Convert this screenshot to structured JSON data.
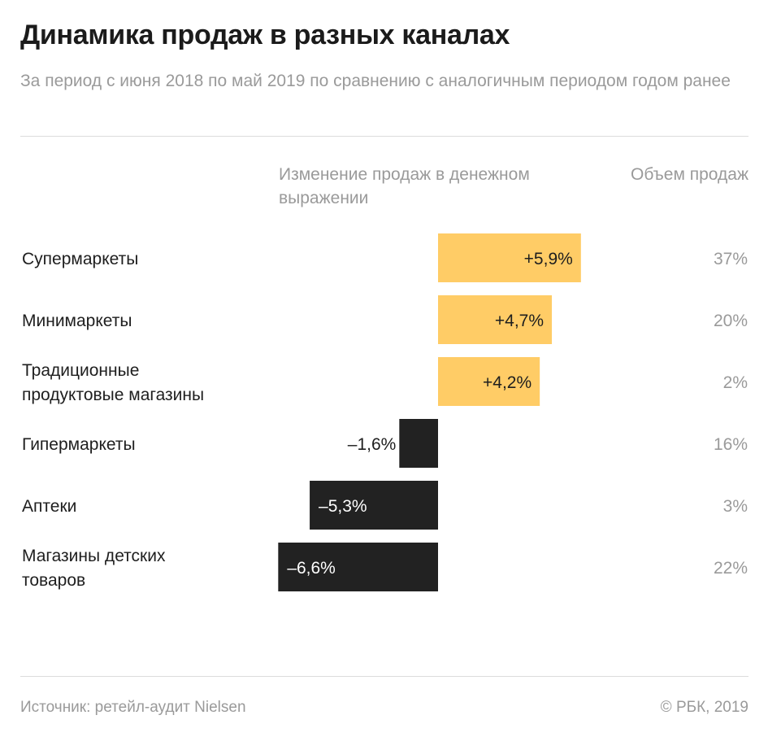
{
  "header": {
    "title": "Динамика продаж в разных каналах",
    "subtitle": "За период с июня 2018 по май 2019 по сравнению с аналогичным периодом годом ранее"
  },
  "columns": {
    "change": "Изменение продаж в денежном выражении",
    "volume": "Объем продаж"
  },
  "chart_data": {
    "type": "bar",
    "orientation": "horizontal",
    "title": "Динамика продаж в разных каналах",
    "subtitle": "За период с июня 2018 по май 2019 по сравнению с аналогичным периодом годом ранее",
    "xlabel": "Изменение продаж в денежном выражении",
    "categories": [
      "Супермаркеты",
      "Минимаркеты",
      "Традиционные продуктовые магазины",
      "Гипермаркеты",
      "Аптеки",
      "Магазины детских товаров"
    ],
    "values": [
      5.9,
      4.7,
      4.2,
      -1.6,
      -5.3,
      -6.6
    ],
    "value_labels": [
      "+5,9%",
      "+4,7%",
      "+4,2%",
      "–1,6%",
      "–5,3%",
      "–6,6%"
    ],
    "volume_share": [
      "37%",
      "20%",
      "2%",
      "16%",
      "3%",
      "22%"
    ],
    "xlim": [
      -6.6,
      5.9
    ],
    "grid": false,
    "colors": {
      "positive": "#ffcc66",
      "negative": "#222222",
      "label_on_positive": "#1e1e1e",
      "label_on_negative": "#ffffff",
      "label_outside": "#1e1e1e",
      "share_text": "#9a9a9a"
    }
  },
  "footer": {
    "source": "Источник: ретейл-аудит Nielsen",
    "copyright": "© РБК, 2019"
  }
}
